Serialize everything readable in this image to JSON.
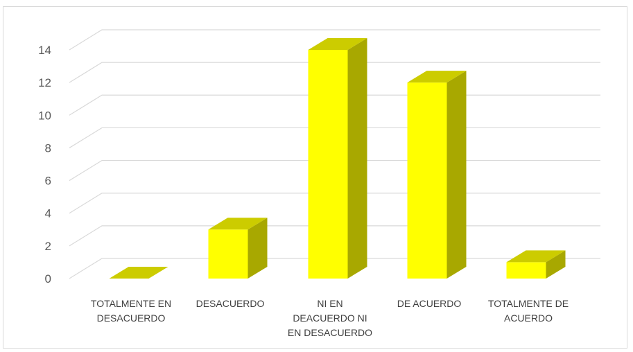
{
  "chart_data": {
    "type": "bar",
    "style": "3d-column",
    "categories": [
      [
        "TOTALMENTE EN",
        "DESACUERDO"
      ],
      [
        "DESACUERDO"
      ],
      [
        "NI EN",
        "DEACUERDO NI",
        "EN DESACUERDO"
      ],
      [
        "DE ACUERDO"
      ],
      [
        "TOTALMENTE DE",
        "ACUERDO"
      ]
    ],
    "values": [
      0,
      3,
      14,
      12,
      1
    ],
    "ylim": [
      0,
      14
    ],
    "yticks": [
      "0",
      "2",
      "4",
      "6",
      "8",
      "10",
      "12",
      "14"
    ],
    "grid": true,
    "legend": "none",
    "colors": {
      "bar_front": "#ffff00",
      "bar_top": "#cccc00",
      "bar_side": "#a8a800",
      "gridline": "#d9d9d9",
      "tick_text": "#595959",
      "category_text": "#404040"
    }
  }
}
